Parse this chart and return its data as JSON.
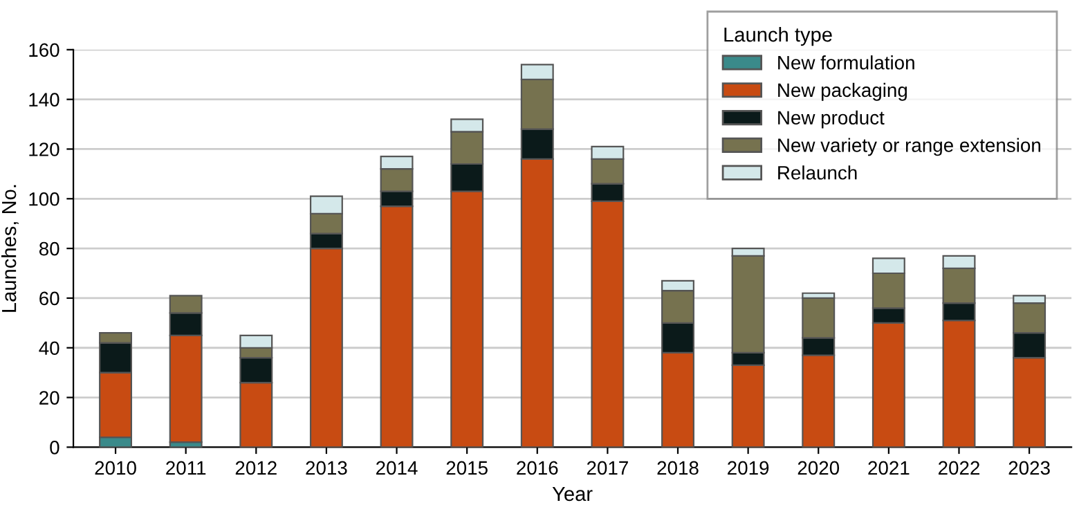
{
  "chart_data": {
    "type": "bar",
    "stacked": true,
    "xlabel": "Year",
    "ylabel": "Launches, No.",
    "legend_title": "Launch type",
    "legend": "top right",
    "grid": "y",
    "categories": [
      "2010",
      "2011",
      "2012",
      "2013",
      "2014",
      "2015",
      "2016",
      "2017",
      "2018",
      "2019",
      "2020",
      "2021",
      "2022",
      "2023"
    ],
    "ylim": [
      0,
      160
    ],
    "yticks": [
      0,
      20,
      40,
      60,
      80,
      100,
      120,
      140,
      160
    ],
    "series": [
      {
        "name": "New formulation",
        "color": "#3a8a8a",
        "values": [
          4,
          2,
          0,
          0,
          0,
          0,
          0,
          0,
          0,
          0,
          0,
          0,
          0,
          0
        ]
      },
      {
        "name": "New packaging",
        "color": "#c84b12",
        "values": [
          26,
          43,
          26,
          80,
          97,
          103,
          116,
          99,
          38,
          33,
          37,
          50,
          51,
          36
        ]
      },
      {
        "name": "New product",
        "color": "#0b1a1a",
        "values": [
          12,
          9,
          10,
          6,
          6,
          11,
          12,
          7,
          12,
          5,
          7,
          6,
          7,
          10
        ]
      },
      {
        "name": "New variety or range extension",
        "color": "#76724f",
        "values": [
          4,
          7,
          4,
          8,
          9,
          13,
          20,
          10,
          13,
          39,
          16,
          14,
          14,
          12
        ]
      },
      {
        "name": "Relaunch",
        "color": "#d4e8ea",
        "values": [
          0,
          0,
          5,
          7,
          5,
          5,
          6,
          5,
          4,
          3,
          2,
          6,
          5,
          3
        ]
      }
    ]
  }
}
